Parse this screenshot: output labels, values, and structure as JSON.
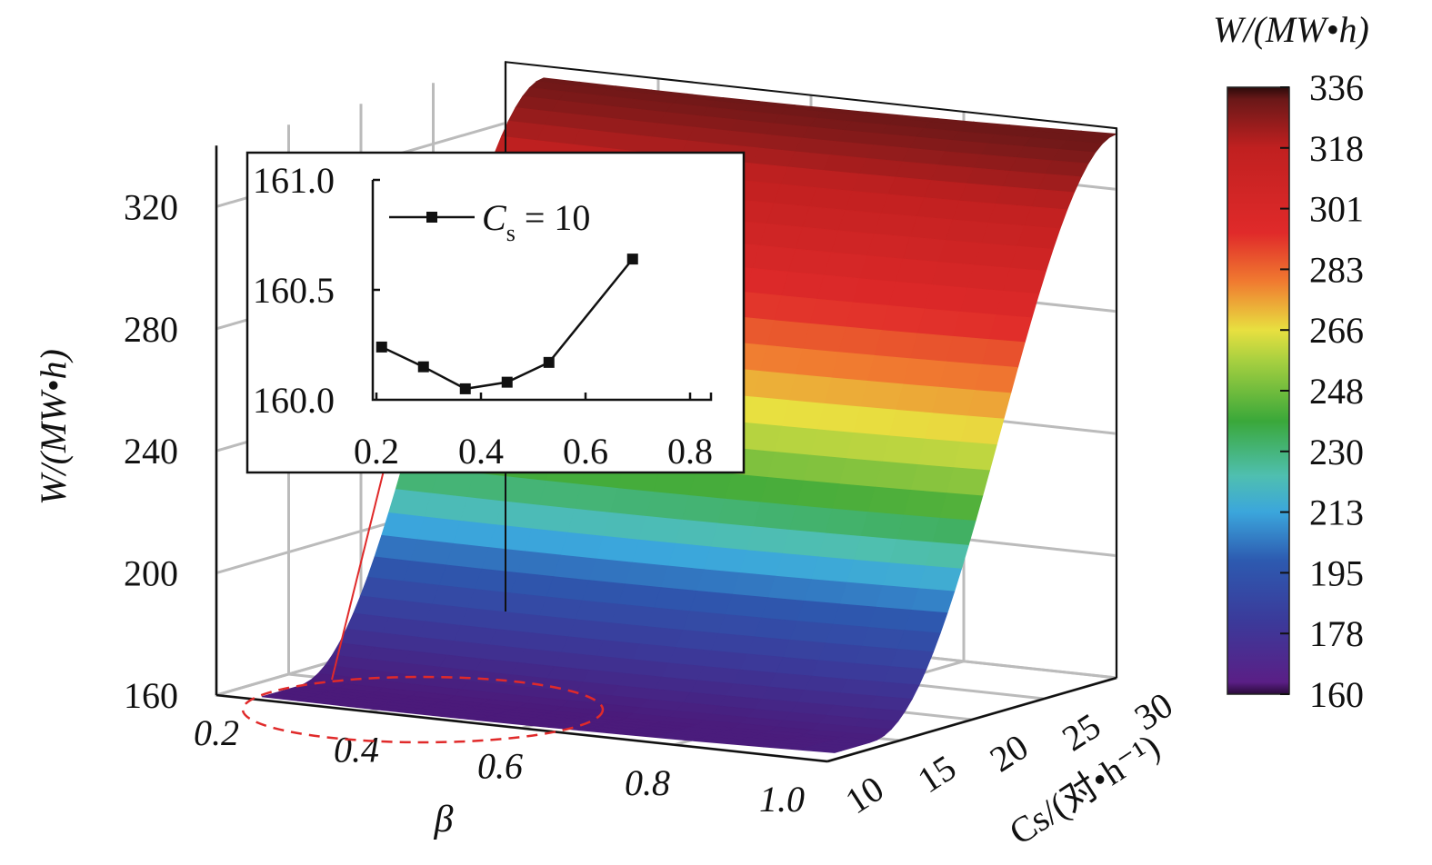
{
  "chart_data": {
    "type": "surface",
    "main": {
      "xlabel": "β",
      "ylabel": "Cs/(对•h⁻¹)",
      "zlabel": "W/(MW•h)",
      "x_ticks": [
        "0.2",
        "0.4",
        "0.6",
        "0.8",
        "1.0"
      ],
      "y_ticks": [
        "10",
        "15",
        "20",
        "25",
        "30"
      ],
      "z_ticks": [
        "160",
        "200",
        "240",
        "280",
        "320"
      ],
      "xlim": [
        0.2,
        1.0
      ],
      "ylim": [
        10,
        30
      ],
      "zlim": [
        160,
        336
      ],
      "surface_description_points": [
        {
          "Cs": 10,
          "W": 160
        },
        {
          "Cs": 15,
          "W": 168
        },
        {
          "Cs": 20,
          "W": 200
        },
        {
          "Cs": 22.5,
          "W": 240
        },
        {
          "Cs": 25,
          "W": 285
        },
        {
          "Cs": 30,
          "W": 336
        }
      ],
      "grid": true
    },
    "colorbar": {
      "title": "W/(MW•h)",
      "ticks": [
        "336",
        "318",
        "301",
        "283",
        "266",
        "248",
        "230",
        "213",
        "195",
        "178",
        "160"
      ],
      "range": [
        160,
        336
      ]
    },
    "inset": {
      "type": "line",
      "legend": "Cs = 10",
      "legend_main": "C",
      "legend_sub": "s",
      "legend_rest": " = 10",
      "x_ticks": [
        "0.2",
        "0.4",
        "0.6",
        "0.8"
      ],
      "y_ticks": [
        "161.0",
        "160.5",
        "160.0"
      ],
      "xlim": [
        0.2,
        0.8
      ],
      "ylim": [
        160.0,
        161.0
      ],
      "x": [
        0.21,
        0.29,
        0.37,
        0.45,
        0.53,
        0.69
      ],
      "y": [
        160.24,
        160.15,
        160.05,
        160.08,
        160.17,
        160.64
      ]
    }
  }
}
